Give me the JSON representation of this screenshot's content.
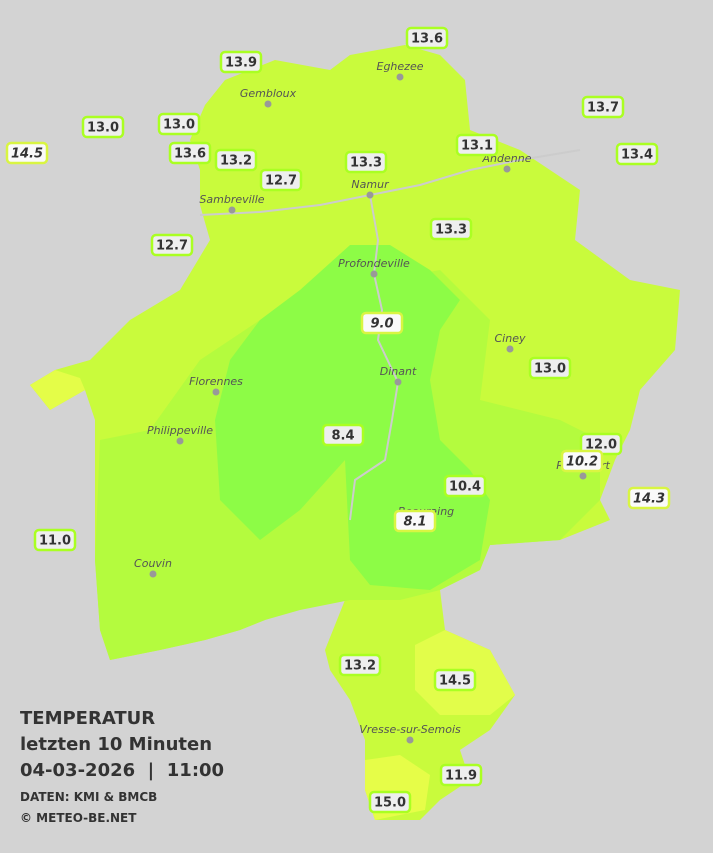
{
  "legend": {
    "title": "TEMPERATUR",
    "period": "letzten 10 Minuten",
    "timestamp": "04-03-2026  |  11:00",
    "source": "DATEN: KMI & BMCB",
    "copyright": "© METEO-BE.NET"
  },
  "towns": [
    {
      "name": "Eghezee"
    },
    {
      "name": "Gembloux"
    },
    {
      "name": "Andenne"
    },
    {
      "name": "Namur"
    },
    {
      "name": "Sambreville"
    },
    {
      "name": "Profondeville"
    },
    {
      "name": "Ciney"
    },
    {
      "name": "Dinant"
    },
    {
      "name": "Florennes"
    },
    {
      "name": "Philippeville"
    },
    {
      "name": "Rochefort"
    },
    {
      "name": "Beauraing"
    },
    {
      "name": "Couvin"
    },
    {
      "name": "Vresse-sur-Semois"
    }
  ],
  "stations": [
    {
      "label": "13.6",
      "italic": false
    },
    {
      "label": "13.9",
      "italic": false
    },
    {
      "label": "13.7",
      "italic": false
    },
    {
      "label": "13.0",
      "italic": false
    },
    {
      "label": "13.0",
      "italic": false
    },
    {
      "label": "14.5",
      "italic": true
    },
    {
      "label": "13.6",
      "italic": false
    },
    {
      "label": "13.2",
      "italic": false
    },
    {
      "label": "13.1",
      "italic": false
    },
    {
      "label": "13.3",
      "italic": false
    },
    {
      "label": "13.4",
      "italic": false
    },
    {
      "label": "12.7",
      "italic": false
    },
    {
      "label": "13.3",
      "italic": false
    },
    {
      "label": "12.7",
      "italic": false
    },
    {
      "label": "9.0",
      "italic": true
    },
    {
      "label": "13.0",
      "italic": false
    },
    {
      "label": "8.4",
      "italic": false
    },
    {
      "label": "12.0",
      "italic": false
    },
    {
      "label": "10.2",
      "italic": true
    },
    {
      "label": "10.4",
      "italic": false
    },
    {
      "label": "14.3",
      "italic": true
    },
    {
      "label": "8.1",
      "italic": true
    },
    {
      "label": "11.0",
      "italic": false
    },
    {
      "label": "13.2",
      "italic": false
    },
    {
      "label": "14.5",
      "italic": false
    },
    {
      "label": "11.9",
      "italic": false
    },
    {
      "label": "15.0",
      "italic": false
    }
  ]
}
